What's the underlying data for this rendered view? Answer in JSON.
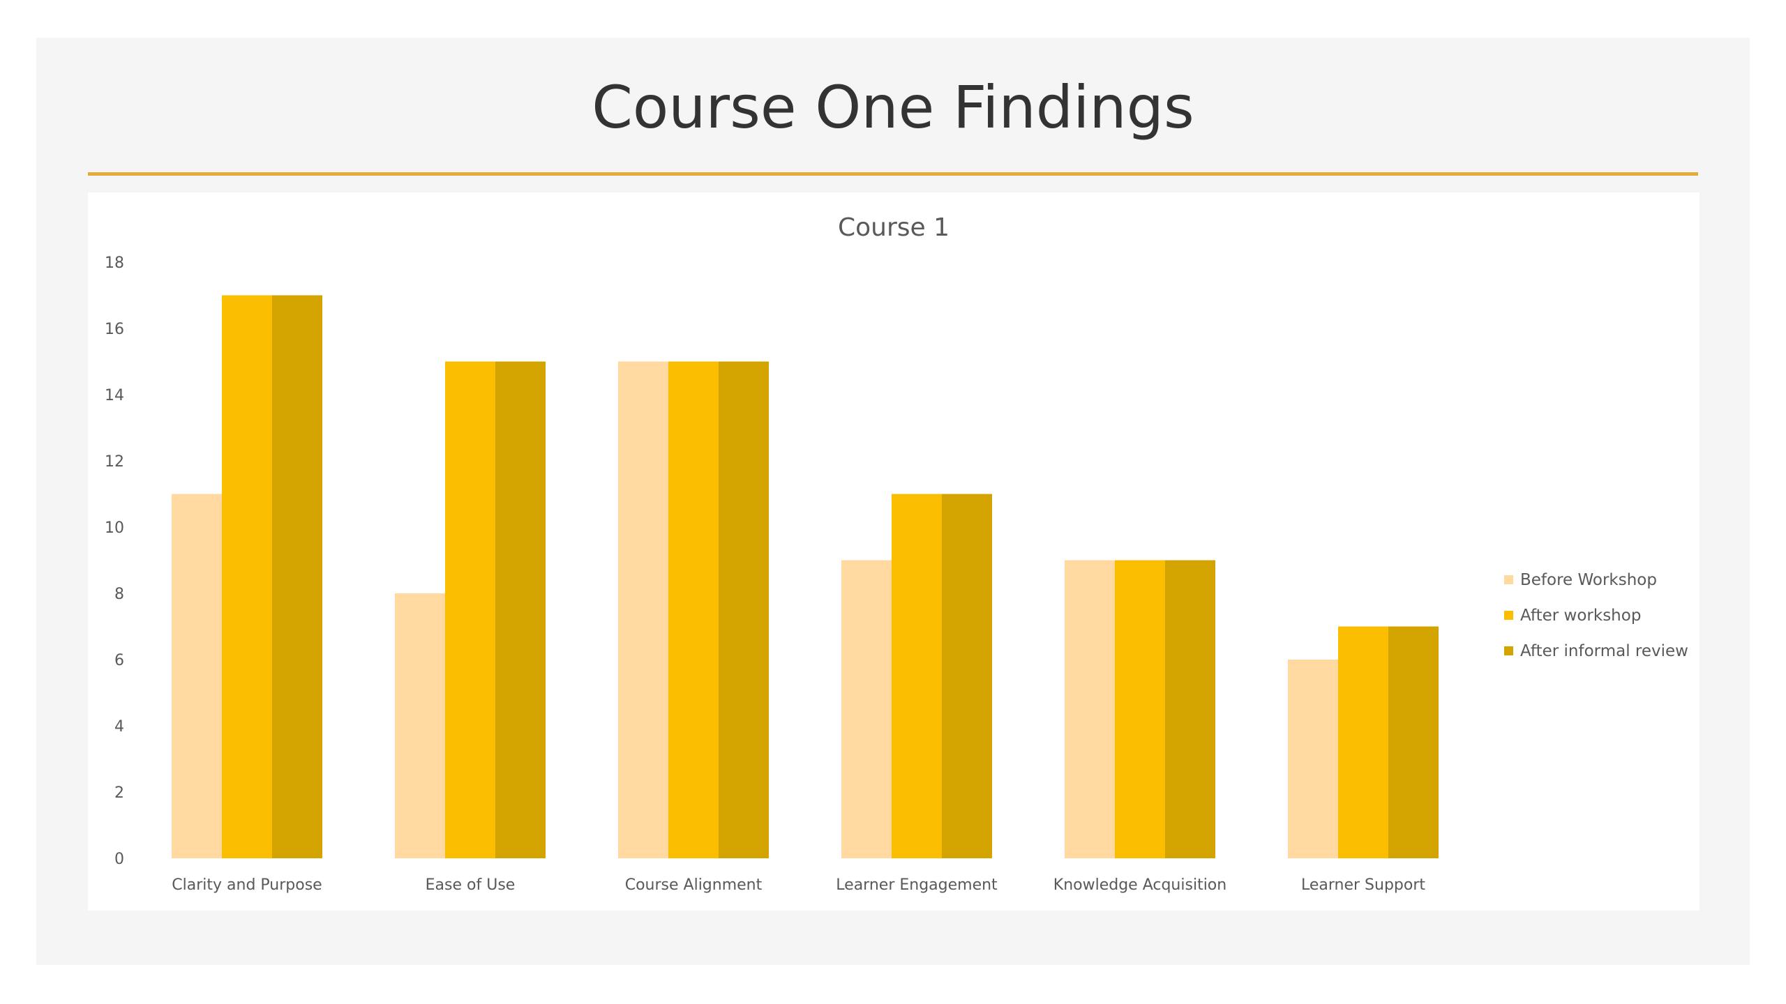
{
  "slide": {
    "title": "Course One Findings"
  },
  "chart_data": {
    "type": "bar",
    "title": "Course 1",
    "categories": [
      "Clarity and Purpose",
      "Ease of Use",
      "Course Alignment",
      "Learner Engagement",
      "Knowledge Acquisition",
      "Learner Support"
    ],
    "series": [
      {
        "name": "Before Workshop",
        "color": "#ffd9a0",
        "values": [
          11,
          8,
          15,
          9,
          9,
          6
        ]
      },
      {
        "name": "After workshop",
        "color": "#fbbd00",
        "values": [
          17,
          15,
          15,
          11,
          9,
          7
        ]
      },
      {
        "name": "After informal review",
        "color": "#d3a300",
        "values": [
          17,
          15,
          15,
          11,
          9,
          7
        ]
      }
    ],
    "ylim": [
      0,
      18
    ],
    "yticks": [
      "0",
      "2",
      "4",
      "6",
      "8",
      "10",
      "12",
      "14",
      "16",
      "18"
    ],
    "xlabel": "",
    "ylabel": "",
    "grid": false,
    "legend_position": "right"
  }
}
